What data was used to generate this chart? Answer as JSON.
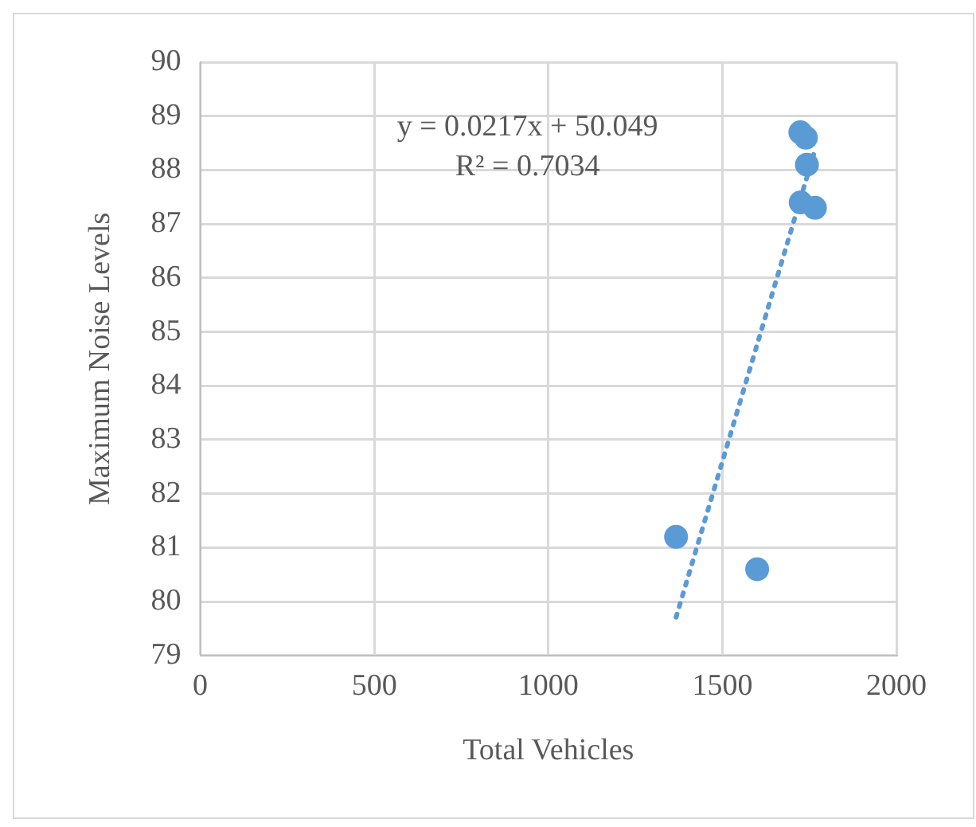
{
  "chart_data": {
    "type": "scatter",
    "xlabel": "Total Vehicles",
    "ylabel": "Maximum Noise Levels",
    "annotations": [
      "y = 0.0217x + 50.049",
      "R² = 0.7034"
    ],
    "series": [
      {
        "color": "#5b9bd5",
        "marker": "circle",
        "x": [
          1367,
          1600,
          1724,
          1740,
          1743,
          1725,
          1766
        ],
        "values": [
          81.2,
          80.6,
          88.7,
          88.6,
          88.1,
          87.4,
          87.3
        ]
      },
      {
        "type": "line",
        "color": "#5b9bd5",
        "marker": "none",
        "line_style": "dotted",
        "x": [
          1367,
          1766
        ],
        "values": [
          79.71,
          88.37
        ]
      }
    ],
    "xlim": [
      0,
      2000
    ],
    "xticks": [
      0,
      500,
      1000,
      1500,
      2000
    ],
    "ylim": [
      79,
      90
    ],
    "yticks": [
      79,
      80,
      81,
      82,
      83,
      84,
      85,
      86,
      87,
      88,
      89,
      90
    ],
    "grid": true,
    "legend": false
  }
}
